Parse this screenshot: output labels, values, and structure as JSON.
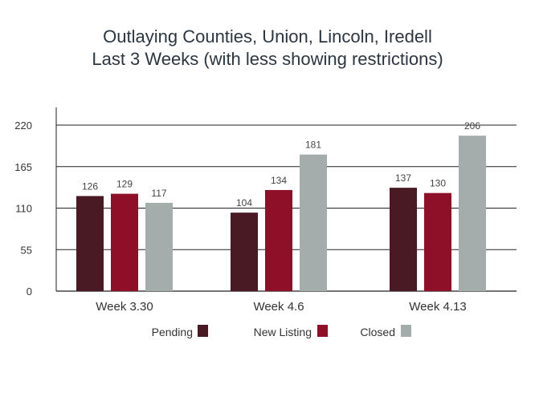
{
  "chart_data": {
    "type": "bar",
    "title": "Outlaying Counties, Union, Lincoln, Iredell",
    "subtitle": "Last 3 Weeks (with less showing restrictions)",
    "categories": [
      "Week 3.30",
      "Week 4.6",
      "Week 4.13"
    ],
    "series": [
      {
        "name": "Pending",
        "color": "#4a1a24",
        "values": [
          126,
          104,
          137
        ]
      },
      {
        "name": "New Listing",
        "color": "#8e1028",
        "values": [
          129,
          134,
          130
        ]
      },
      {
        "name": "Closed",
        "color": "#a4acac",
        "values": [
          117,
          181,
          206
        ]
      }
    ],
    "yticks": [
      0,
      55,
      110,
      165,
      220
    ],
    "ylim": [
      0,
      220
    ],
    "grid": true,
    "legend": "bottom",
    "xlabel": "",
    "ylabel": ""
  }
}
